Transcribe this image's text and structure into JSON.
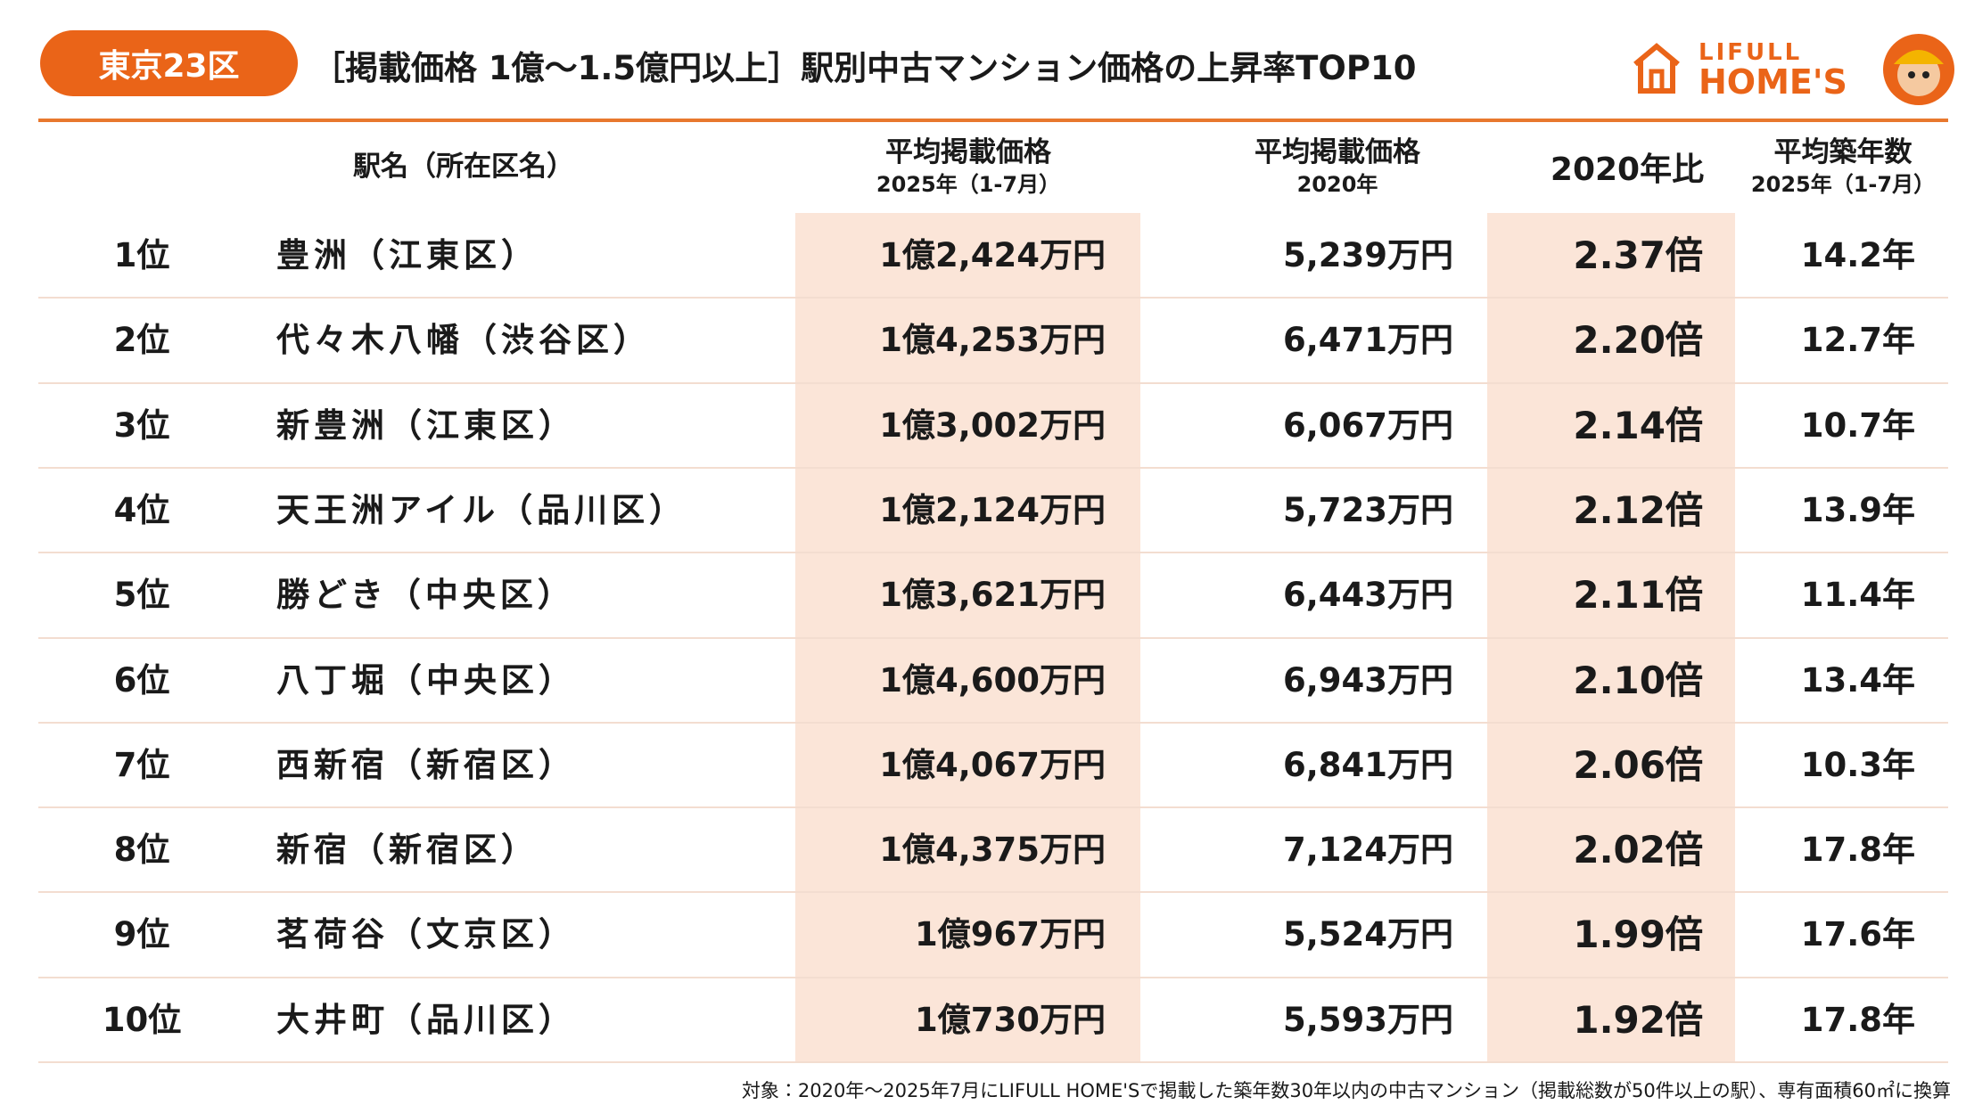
{
  "header": {
    "badge": "東京23区",
    "title": "［掲載価格 1億〜1.5億円以上］駅別中古マンション価格の上昇率TOP10",
    "logo_top": "LIFULL",
    "logo_bottom": "HOME'S"
  },
  "table": {
    "columns": [
      [
        "駅名（所在区名）"
      ],
      [
        "平均掲載価格",
        "2025年（1-7月）"
      ],
      [
        "平均掲載価格",
        "2020年"
      ],
      [
        "2020年比"
      ],
      [
        "平均築年数",
        "2025年（1-7月）"
      ]
    ],
    "rows": [
      [
        "1位",
        "豊洲（江東区）",
        "1億2,424万円",
        "5,239万円",
        "2.37倍",
        "14.2年"
      ],
      [
        "2位",
        "代々木八幡（渋谷区）",
        "1億4,253万円",
        "6,471万円",
        "2.20倍",
        "12.7年"
      ],
      [
        "3位",
        "新豊洲（江東区）",
        "1億3,002万円",
        "6,067万円",
        "2.14倍",
        "10.7年"
      ],
      [
        "4位",
        "天王洲アイル（品川区）",
        "1億2,124万円",
        "5,723万円",
        "2.12倍",
        "13.9年"
      ],
      [
        "5位",
        "勝どき（中央区）",
        "1億3,621万円",
        "6,443万円",
        "2.11倍",
        "11.4年"
      ],
      [
        "6位",
        "八丁堀（中央区）",
        "1億4,600万円",
        "6,943万円",
        "2.10倍",
        "13.4年"
      ],
      [
        "7位",
        "西新宿（新宿区）",
        "1億4,067万円",
        "6,841万円",
        "2.06倍",
        "10.3年"
      ],
      [
        "8位",
        "新宿（新宿区）",
        "1億4,375万円",
        "7,124万円",
        "2.02倍",
        "17.8年"
      ],
      [
        "9位",
        "茗荷谷（文京区）",
        "1億967万円",
        "5,524万円",
        "1.99倍",
        "17.6年"
      ],
      [
        "10位",
        "大井町（品川区）",
        "1億730万円",
        "5,593万円",
        "1.92倍",
        "17.8年"
      ]
    ]
  },
  "footnote": "対象：2020年〜2025年7月にLIFULL HOME'Sで掲載した築年数30年以内の中古マンション（掲載総数が50件以上の駅）、専有面積60㎡に換算"
}
